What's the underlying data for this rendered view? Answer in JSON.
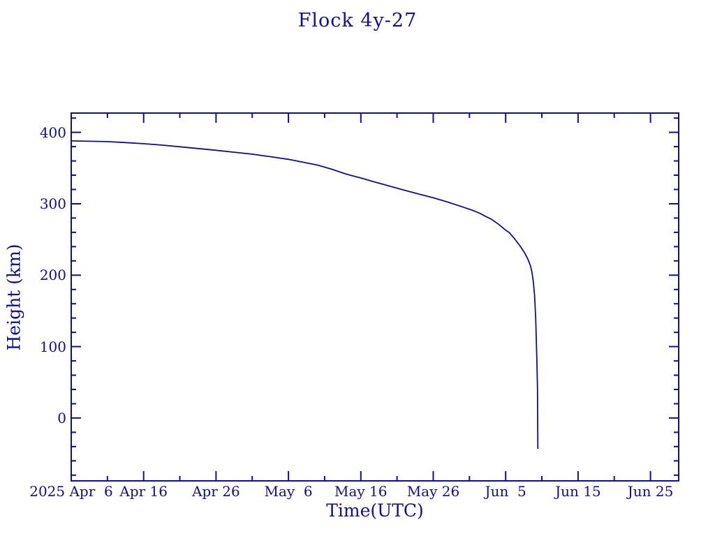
{
  "page": {
    "background": "#ffffff",
    "ink_color": "#0e0e96"
  },
  "chart_data": {
    "type": "line",
    "title": "Flock 4y-27",
    "xlabel": "Time(UTC)",
    "ylabel": "Height (km)",
    "grid": false,
    "legend": "none",
    "line_color": "#0e0e96",
    "x_axis": {
      "unit": "days since 2025 Apr 6 (UTC)",
      "days_span": 83.9,
      "major_ticks_days": [
        0,
        10,
        20,
        30,
        40,
        50,
        60,
        70,
        80
      ],
      "major_tick_labels": [
        "2025 Apr  6",
        "Apr 16",
        "Apr 26",
        "May  6",
        "May 16",
        "May 26",
        "Jun  5",
        "Jun 15",
        "Jun 25"
      ],
      "minor_ticks_days": [
        5,
        15,
        25,
        35,
        45,
        55,
        65,
        75
      ]
    },
    "y_axis": {
      "min": -88,
      "max": 427,
      "major_ticks": [
        0,
        100,
        200,
        300,
        400
      ],
      "major_tick_labels": [
        "0",
        "100",
        "200",
        "300",
        "400"
      ],
      "minor_tick_step": 20
    },
    "series": [
      {
        "name": "Flock 4y-27 orbital height",
        "color": "#0e0e96",
        "points_day_height": [
          [
            0,
            388
          ],
          [
            2.5,
            387.5
          ],
          [
            5,
            387
          ],
          [
            7.5,
            385.7
          ],
          [
            10,
            384.1
          ],
          [
            12.5,
            382.1
          ],
          [
            15,
            379.8
          ],
          [
            17.5,
            377.4
          ],
          [
            20,
            374.9
          ],
          [
            22.5,
            372.2
          ],
          [
            25,
            369.4
          ],
          [
            27.5,
            365.9
          ],
          [
            30,
            362.2
          ],
          [
            32,
            358.2
          ],
          [
            34,
            354.2
          ],
          [
            36,
            348.3
          ],
          [
            38,
            341.5
          ],
          [
            40,
            336.1
          ],
          [
            42,
            330.3
          ],
          [
            44,
            324.6
          ],
          [
            46,
            319
          ],
          [
            48,
            313.6
          ],
          [
            50,
            308.4
          ],
          [
            52,
            302.4
          ],
          [
            54,
            295.8
          ],
          [
            55.5,
            290.6
          ],
          [
            56.5,
            286.4
          ],
          [
            57.3,
            282
          ],
          [
            58,
            278.6
          ],
          [
            59,
            271.4
          ],
          [
            60,
            263
          ],
          [
            60.5,
            259.6
          ],
          [
            61.2,
            251.4
          ],
          [
            62,
            240.8
          ],
          [
            62.7,
            229.8
          ],
          [
            63.1,
            221.8
          ],
          [
            63.4,
            214
          ],
          [
            63.6,
            206
          ],
          [
            63.8,
            193
          ],
          [
            64,
            172
          ],
          [
            64.15,
            140
          ],
          [
            64.3,
            85
          ],
          [
            64.4,
            40
          ],
          [
            64.45,
            -43
          ]
        ]
      }
    ]
  }
}
